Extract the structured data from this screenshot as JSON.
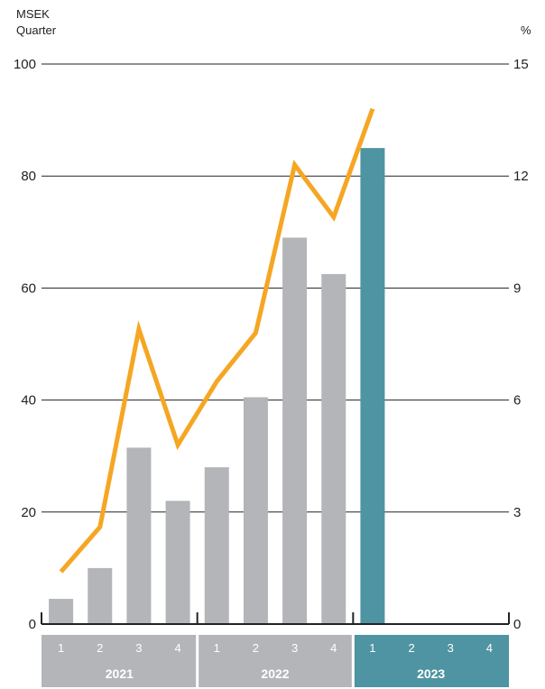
{
  "chart_data": {
    "type": "bar",
    "left_unit_line1": "MSEK",
    "left_unit_line2": "Quarter",
    "right_unit": "%",
    "left_ylim": [
      0,
      100
    ],
    "left_ticks": [
      "0",
      "20",
      "40",
      "60",
      "80",
      "100"
    ],
    "right_ylim": [
      0,
      15
    ],
    "right_ticks": [
      "0",
      "3",
      "6",
      "9",
      "12",
      "15"
    ],
    "grid": true,
    "years": [
      {
        "label": "2021",
        "quarters": [
          "1",
          "2",
          "3",
          "4"
        ],
        "color": "#b3b5b8"
      },
      {
        "label": "2022",
        "quarters": [
          "1",
          "2",
          "3",
          "4"
        ],
        "color": "#b3b5b8"
      },
      {
        "label": "2023",
        "quarters": [
          "1",
          "2",
          "3",
          "4"
        ],
        "color": "#4e94a2"
      }
    ],
    "series": [
      {
        "type": "bar",
        "axis": "left",
        "values": [
          4.5,
          10,
          31.5,
          22,
          28,
          40.5,
          69,
          62.5,
          85,
          null,
          null,
          null
        ],
        "highlight_color": "#4e94a2",
        "default_color": "#b3b5b8"
      },
      {
        "type": "line",
        "axis": "right",
        "color": "#f5a623",
        "values": [
          1.4,
          2.6,
          7.9,
          4.8,
          6.5,
          7.8,
          12.3,
          10.9,
          13.8,
          null,
          null,
          null
        ]
      }
    ]
  }
}
